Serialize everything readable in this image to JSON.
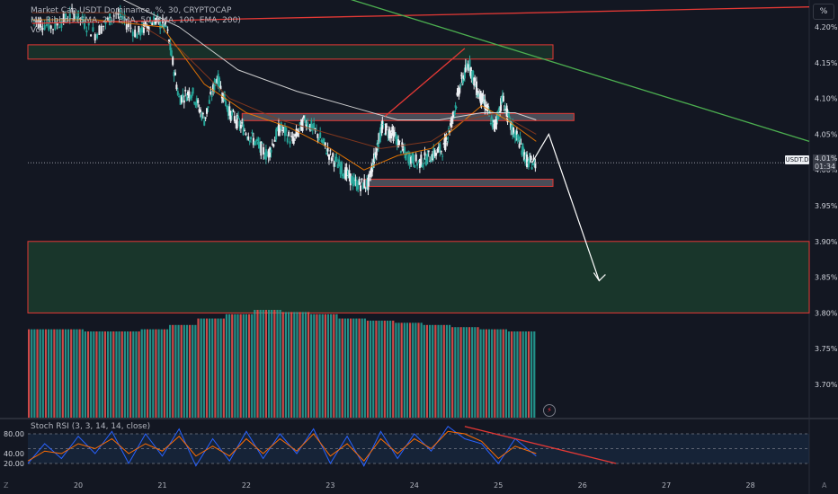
{
  "legend": {
    "title": "Market Cap USDT Dominance, %, 30, CRYPTOCAP",
    "ribbon": "MA Ribbon (SMA, 20, EMA, 50, EMA, 100, EMA, 200)",
    "vol": "Vol"
  },
  "price_badge": {
    "symbol": "USDT.D",
    "value": "4.01%",
    "countdown": "01:34"
  },
  "percent_button": "%",
  "stoch_label": "Stoch RSI (3, 3, 14, 14, close)",
  "colors": {
    "background": "#131722",
    "up": "#26a69a",
    "down": "#ef5350",
    "trendline_red": "#e53935",
    "trendline_green": "#4caf50",
    "zone_green": "#1b3a2c",
    "zone_gray": "#5d606b"
  },
  "chart_data": [
    {
      "type": "candlestick",
      "title": "Market Cap USDT Dominance, %, 30, CRYPTOCAP",
      "ylabel": "%",
      "ylim": [
        3.665,
        4.235
      ],
      "yticks": [
        "4.20%",
        "4.15%",
        "4.10%",
        "4.05%",
        "4.00%",
        "3.95%",
        "3.90%",
        "3.85%",
        "3.80%",
        "3.75%",
        "3.70%"
      ],
      "x_ticks": [
        "20",
        "21",
        "22",
        "23",
        "24",
        "25",
        "26",
        "27",
        "28"
      ],
      "x_range_days": [
        19.4,
        28.7
      ],
      "current_price": 4.01,
      "series": [
        {
          "name": "close",
          "x": [
            19.45,
            19.7,
            19.95,
            20.2,
            20.45,
            20.7,
            20.9,
            21.05,
            21.2,
            21.35,
            21.5,
            21.65,
            21.8,
            21.95,
            22.1,
            22.25,
            22.4,
            22.55,
            22.7,
            22.85,
            23.0,
            23.15,
            23.3,
            23.45,
            23.55,
            23.62,
            23.75,
            23.9,
            24.05,
            24.2,
            24.35,
            24.45,
            24.55,
            24.65,
            24.75,
            24.85,
            24.95,
            25.05,
            25.15,
            25.25,
            25.35,
            25.45
          ],
          "values": [
            4.21,
            4.2,
            4.22,
            4.19,
            4.22,
            4.19,
            4.21,
            4.2,
            4.1,
            4.11,
            4.07,
            4.13,
            4.08,
            4.06,
            4.04,
            4.02,
            4.06,
            4.04,
            4.07,
            4.05,
            4.02,
            4.0,
            3.98,
            3.98,
            4.03,
            4.06,
            4.05,
            4.02,
            4.01,
            4.02,
            4.03,
            4.07,
            4.12,
            4.15,
            4.11,
            4.09,
            4.06,
            4.1,
            4.06,
            4.04,
            4.01,
            4.01
          ]
        },
        {
          "name": "SMA 20",
          "x": [
            19.45,
            20.2,
            21.0,
            21.5,
            22.0,
            22.5,
            23.0,
            23.4,
            23.8,
            24.2,
            24.5,
            24.8,
            25.1,
            25.45
          ],
          "values": [
            4.21,
            4.21,
            4.2,
            4.12,
            4.08,
            4.06,
            4.03,
            4.0,
            4.02,
            4.03,
            4.06,
            4.09,
            4.07,
            4.04
          ]
        },
        {
          "name": "EMA 50",
          "x": [
            19.45,
            20.5,
            21.2,
            21.8,
            22.4,
            23.0,
            23.6,
            24.2,
            24.6,
            25.0,
            25.45
          ],
          "values": [
            4.22,
            4.22,
            4.17,
            4.1,
            4.07,
            4.05,
            4.03,
            4.04,
            4.07,
            4.08,
            4.05
          ]
        },
        {
          "name": "EMA 100",
          "x": [
            19.45,
            20.5,
            21.2,
            21.9,
            22.6,
            23.2,
            23.8,
            24.3,
            24.8,
            25.2,
            25.45
          ],
          "values": [
            4.25,
            4.24,
            4.2,
            4.14,
            4.11,
            4.09,
            4.07,
            4.07,
            4.08,
            4.08,
            4.07
          ]
        }
      ],
      "zones": [
        {
          "kind": "resistance",
          "from_day": 19.4,
          "to_day": 25.65,
          "y_low": 4.155,
          "y_high": 4.175
        },
        {
          "kind": "supply",
          "from_day": 21.95,
          "to_day": 25.9,
          "y_low": 4.069,
          "y_high": 4.079
        },
        {
          "kind": "demand",
          "from_day": 23.4,
          "to_day": 25.65,
          "y_low": 3.977,
          "y_high": 3.987
        },
        {
          "kind": "target",
          "from_day": 19.4,
          "to_day": 28.7,
          "y_low": 3.8,
          "y_high": 3.9
        }
      ],
      "trendlines": [
        {
          "kind": "red",
          "points": [
            [
              19.45,
              4.205
            ],
            [
              28.7,
              4.228
            ]
          ]
        },
        {
          "kind": "red",
          "points": [
            [
              23.65,
              4.075
            ],
            [
              24.6,
              4.17
            ]
          ]
        },
        {
          "kind": "green",
          "points": [
            [
              23.2,
              4.24
            ],
            [
              28.7,
              4.04
            ]
          ]
        },
        {
          "kind": "projection",
          "points": [
            [
              25.4,
              4.01
            ],
            [
              25.6,
              4.05
            ],
            [
              26.2,
              3.845
            ]
          ]
        }
      ],
      "volume": {
        "x_range_days": [
          19.4,
          25.45
        ],
        "relative": [
          0.82,
          0.82,
          0.8,
          0.8,
          0.82,
          0.86,
          0.92,
          0.96,
          1.0,
          0.98,
          0.96,
          0.92,
          0.9,
          0.88,
          0.86,
          0.84,
          0.82,
          0.8
        ]
      }
    },
    {
      "type": "line",
      "title": "Stoch RSI (3, 3, 14, 14, close)",
      "ylim": [
        0,
        100
      ],
      "yticks": [
        "80.00",
        "40.00",
        "20.00"
      ],
      "bands": [
        20,
        50,
        80
      ],
      "series": [
        {
          "name": "K",
          "x": [
            19.4,
            19.6,
            19.8,
            20.0,
            20.2,
            20.4,
            20.6,
            20.8,
            21.0,
            21.2,
            21.4,
            21.6,
            21.8,
            22.0,
            22.2,
            22.4,
            22.6,
            22.8,
            23.0,
            23.2,
            23.4,
            23.6,
            23.8,
            24.0,
            24.2,
            24.4,
            24.6,
            24.8,
            25.0,
            25.2,
            25.45
          ],
          "values": [
            20,
            60,
            30,
            75,
            40,
            85,
            20,
            80,
            35,
            90,
            15,
            70,
            25,
            85,
            30,
            80,
            40,
            90,
            20,
            75,
            15,
            85,
            30,
            80,
            45,
            95,
            70,
            60,
            20,
            70,
            35
          ]
        },
        {
          "name": "D",
          "x": [
            19.4,
            19.6,
            19.8,
            20.0,
            20.2,
            20.4,
            20.6,
            20.8,
            21.0,
            21.2,
            21.4,
            21.6,
            21.8,
            22.0,
            22.2,
            22.4,
            22.6,
            22.8,
            23.0,
            23.2,
            23.4,
            23.6,
            23.8,
            24.0,
            24.2,
            24.4,
            24.6,
            24.8,
            25.0,
            25.2,
            25.45
          ],
          "values": [
            25,
            45,
            40,
            60,
            50,
            70,
            40,
            60,
            45,
            75,
            35,
            55,
            35,
            70,
            40,
            70,
            45,
            80,
            35,
            60,
            25,
            70,
            40,
            70,
            50,
            85,
            80,
            65,
            30,
            55,
            40
          ]
        }
      ],
      "trendline": [
        [
          24.6,
          95
        ],
        [
          26.4,
          20
        ]
      ]
    }
  ]
}
